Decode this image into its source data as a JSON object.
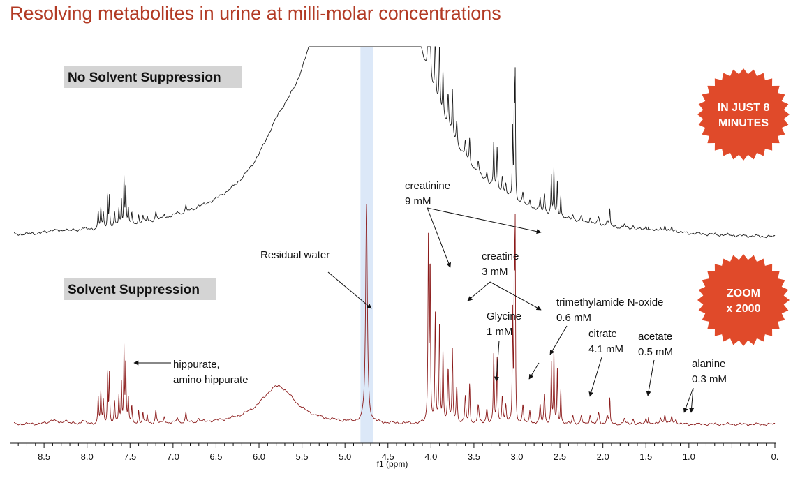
{
  "title": "Resolving metabolites in urine at milli-molar concentrations",
  "chart_data": {
    "type": "line",
    "xlabel": "f1 (ppm)",
    "xlim": [
      8.85,
      0.0
    ],
    "x_reversed": true,
    "ticks": [
      8.5,
      8.0,
      7.5,
      7.0,
      6.5,
      6.0,
      5.5,
      5.0,
      4.5,
      4.0,
      3.5,
      3.0,
      2.5,
      2.0,
      1.5,
      1.0,
      0.0
    ],
    "tick_labels": [
      "8.5",
      "8.0",
      "7.5",
      "7.0",
      "6.5",
      "6.0",
      "5.5",
      "5.0",
      "4.5",
      "4.0",
      "3.5",
      "3.0",
      "2.5",
      "2.0",
      "1.5",
      "1.0",
      "0."
    ],
    "water_band": [
      4.67,
      4.82
    ],
    "colors": {
      "top": "#1a1a1a",
      "bottom": "#8b1a1a",
      "badge": "#e04a2a",
      "band": "#dce8f8",
      "title": "#b23a24"
    },
    "series": [
      {
        "name": "No Solvent Suppression",
        "color": "#1a1a1a"
      },
      {
        "name": "Solvent Suppression",
        "color": "#8b1a1a"
      }
    ],
    "peaks": [
      {
        "x": 8.4,
        "h": 0.025,
        "w": 0.04
      },
      {
        "x": 8.25,
        "h": 0.025,
        "w": 0.02
      },
      {
        "x": 8.05,
        "h": 0.02,
        "w": 0.02
      },
      {
        "x": 7.87,
        "h": 0.14,
        "w": 0.006
      },
      {
        "x": 7.84,
        "h": 0.17,
        "w": 0.006
      },
      {
        "x": 7.81,
        "h": 0.12,
        "w": 0.006
      },
      {
        "x": 7.76,
        "h": 0.3,
        "w": 0.005
      },
      {
        "x": 7.74,
        "h": 0.27,
        "w": 0.005
      },
      {
        "x": 7.68,
        "h": 0.12,
        "w": 0.006
      },
      {
        "x": 7.63,
        "h": 0.15,
        "w": 0.006
      },
      {
        "x": 7.6,
        "h": 0.22,
        "w": 0.005
      },
      {
        "x": 7.57,
        "h": 0.42,
        "w": 0.005
      },
      {
        "x": 7.55,
        "h": 0.35,
        "w": 0.005
      },
      {
        "x": 7.52,
        "h": 0.14,
        "w": 0.006
      },
      {
        "x": 7.48,
        "h": 0.09,
        "w": 0.006
      },
      {
        "x": 7.4,
        "h": 0.07,
        "w": 0.006
      },
      {
        "x": 7.35,
        "h": 0.06,
        "w": 0.006
      },
      {
        "x": 7.3,
        "h": 0.05,
        "w": 0.006
      },
      {
        "x": 7.2,
        "h": 0.07,
        "w": 0.008
      },
      {
        "x": 7.1,
        "h": 0.04,
        "w": 0.008
      },
      {
        "x": 6.95,
        "h": 0.03,
        "w": 0.01
      },
      {
        "x": 6.85,
        "h": 0.05,
        "w": 0.008
      },
      {
        "x": 6.7,
        "h": 0.02,
        "w": 0.01
      },
      {
        "x": 5.78,
        "h": 0.21,
        "w": 0.25
      },
      {
        "x": 4.03,
        "h": 1.0,
        "w": 0.006
      },
      {
        "x": 4.01,
        "h": 0.9,
        "w": 0.005
      },
      {
        "x": 3.95,
        "h": 0.6,
        "w": 0.006
      },
      {
        "x": 3.9,
        "h": 0.55,
        "w": 0.006
      },
      {
        "x": 3.86,
        "h": 0.4,
        "w": 0.006
      },
      {
        "x": 3.8,
        "h": 0.3,
        "w": 0.008
      },
      {
        "x": 3.75,
        "h": 0.4,
        "w": 0.006
      },
      {
        "x": 3.7,
        "h": 0.2,
        "w": 0.008
      },
      {
        "x": 3.6,
        "h": 0.15,
        "w": 0.008
      },
      {
        "x": 3.55,
        "h": 0.22,
        "w": 0.006
      },
      {
        "x": 3.45,
        "h": 0.1,
        "w": 0.01
      },
      {
        "x": 3.35,
        "h": 0.08,
        "w": 0.01
      },
      {
        "x": 3.27,
        "h": 0.38,
        "w": 0.006
      },
      {
        "x": 3.23,
        "h": 0.35,
        "w": 0.006
      },
      {
        "x": 3.17,
        "h": 0.15,
        "w": 0.008
      },
      {
        "x": 3.13,
        "h": 0.1,
        "w": 0.008
      },
      {
        "x": 3.05,
        "h": 0.6,
        "w": 0.005
      },
      {
        "x": 3.03,
        "h": 1.0,
        "w": 0.004
      },
      {
        "x": 3.02,
        "h": 1.0,
        "w": 0.004
      },
      {
        "x": 2.93,
        "h": 0.1,
        "w": 0.008
      },
      {
        "x": 2.85,
        "h": 0.08,
        "w": 0.008
      },
      {
        "x": 2.73,
        "h": 0.1,
        "w": 0.008
      },
      {
        "x": 2.68,
        "h": 0.16,
        "w": 0.008
      },
      {
        "x": 2.6,
        "h": 0.33,
        "w": 0.005
      },
      {
        "x": 2.57,
        "h": 0.4,
        "w": 0.005
      },
      {
        "x": 2.53,
        "h": 0.3,
        "w": 0.005
      },
      {
        "x": 2.49,
        "h": 0.2,
        "w": 0.005
      },
      {
        "x": 2.35,
        "h": 0.05,
        "w": 0.01
      },
      {
        "x": 2.25,
        "h": 0.04,
        "w": 0.01
      },
      {
        "x": 2.15,
        "h": 0.05,
        "w": 0.01
      },
      {
        "x": 2.05,
        "h": 0.06,
        "w": 0.01
      },
      {
        "x": 1.95,
        "h": 0.05,
        "w": 0.01
      },
      {
        "x": 1.92,
        "h": 0.14,
        "w": 0.005
      },
      {
        "x": 1.75,
        "h": 0.03,
        "w": 0.01
      },
      {
        "x": 1.65,
        "h": 0.03,
        "w": 0.01
      },
      {
        "x": 1.5,
        "h": 0.03,
        "w": 0.01
      },
      {
        "x": 1.47,
        "h": 0.04,
        "w": 0.005
      },
      {
        "x": 1.33,
        "h": 0.04,
        "w": 0.01
      },
      {
        "x": 1.28,
        "h": 0.05,
        "w": 0.01
      },
      {
        "x": 1.2,
        "h": 0.04,
        "w": 0.01
      },
      {
        "x": 1.15,
        "h": 0.03,
        "w": 0.01
      }
    ],
    "labels": {
      "top_panel": "No Solvent Suppression",
      "bottom_panel": "Solvent Suppression",
      "residual_water": "Residual water",
      "hippurate": [
        "hippurate,",
        "amino hippurate"
      ],
      "creatinine": [
        "creatinine",
        "9 mM"
      ],
      "creatine": [
        "creatine",
        "3 mM"
      ],
      "glycine": [
        "Glycine",
        "1 mM"
      ],
      "tmao": [
        "trimethylamide N-oxide",
        "0.6 mM"
      ],
      "citrate": [
        "citrate",
        "4.1 mM"
      ],
      "acetate": [
        "acetate",
        "0.5 mM"
      ],
      "alanine": [
        "alanine",
        "0.3 mM"
      ]
    },
    "badges": [
      {
        "lines": [
          "IN JUST 8",
          "MINUTES"
        ]
      },
      {
        "lines": [
          "ZOOM",
          "x 2000"
        ]
      }
    ]
  }
}
